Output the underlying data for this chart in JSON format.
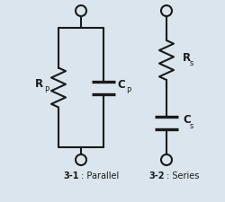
{
  "bg_color": "#dae5ed",
  "line_color": "#1a1a1a",
  "line_width": 1.5,
  "label_parallel_bold": "3-1",
  "label_parallel_normal": ": Parallel",
  "label_series_bold": "3-2",
  "label_series_normal": ": Series",
  "rp_label": "R",
  "rp_sub": "P",
  "cp_label": "C",
  "cp_sub": "P",
  "rs_label": "R",
  "rs_sub": "s",
  "cs_label": "C",
  "cs_sub": "s"
}
